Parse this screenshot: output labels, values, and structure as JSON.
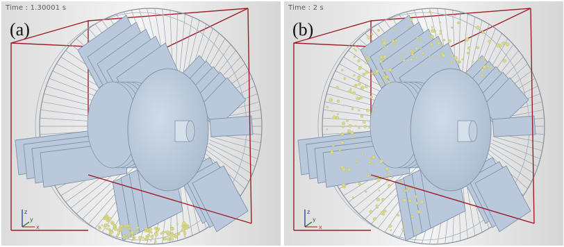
{
  "panels": [
    {
      "label": "(a)",
      "time": "Time : 1.30001 s",
      "axes": {
        "z": "z",
        "x": "x",
        "y": "y"
      },
      "particle_layer": "low"
    },
    {
      "label": "(b)",
      "time": "Time : 2 s",
      "axes": {
        "z": "z",
        "x": "x",
        "y": "y"
      },
      "particle_layer": "spread"
    }
  ],
  "colors": {
    "background": "#ececec",
    "frame": "#9c1c25",
    "drum_part": "#b9c9db",
    "drum_edge": "#7f93ab",
    "grid_line": "#8e9aa6",
    "particle": "#d9d98b",
    "axis_x": "#c0392b",
    "axis_y": "#1f6b2d",
    "axis_z": "#1c3d9c"
  }
}
